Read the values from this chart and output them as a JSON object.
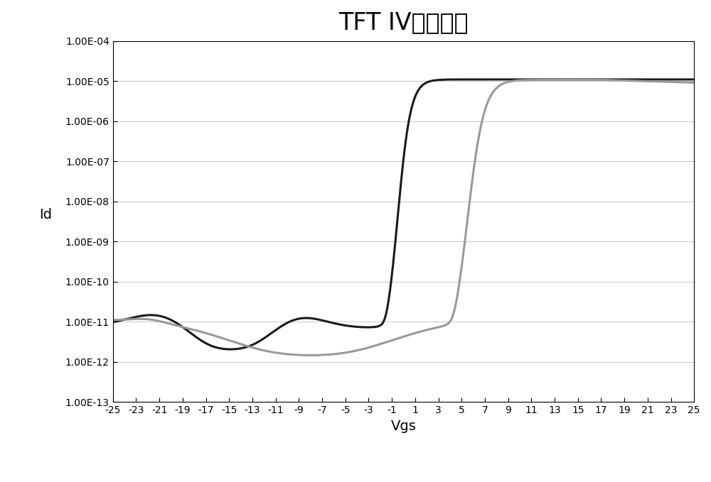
{
  "title": "TFT IV特性曲线",
  "xlabel": "Vgs",
  "ylabel": "Id",
  "xlim": [
    -25,
    25
  ],
  "ylim_log": [
    -13,
    -4
  ],
  "xticks": [
    -25,
    -23,
    -21,
    -19,
    -17,
    -15,
    -13,
    -11,
    -9,
    -7,
    -5,
    -3,
    -1,
    1,
    3,
    5,
    7,
    9,
    11,
    13,
    15,
    17,
    19,
    21,
    23,
    25
  ],
  "ytick_labels": [
    "1.00E-13",
    "1.00E-12",
    "1.00E-11",
    "1.00E-10",
    "1.00E-09",
    "1.00E-08",
    "1.00E-07",
    "1.00E-06",
    "1.00E-05",
    "1.00E-04"
  ],
  "black_curve_color": "#1a1a1a",
  "gray_curve_color": "#999999",
  "background_color": "#ffffff",
  "title_fontsize": 24,
  "axis_label_fontsize": 14,
  "tick_fontsize": 10,
  "linewidth": 2.2,
  "figsize": [
    10.0,
    6.79
  ],
  "dpi": 100
}
